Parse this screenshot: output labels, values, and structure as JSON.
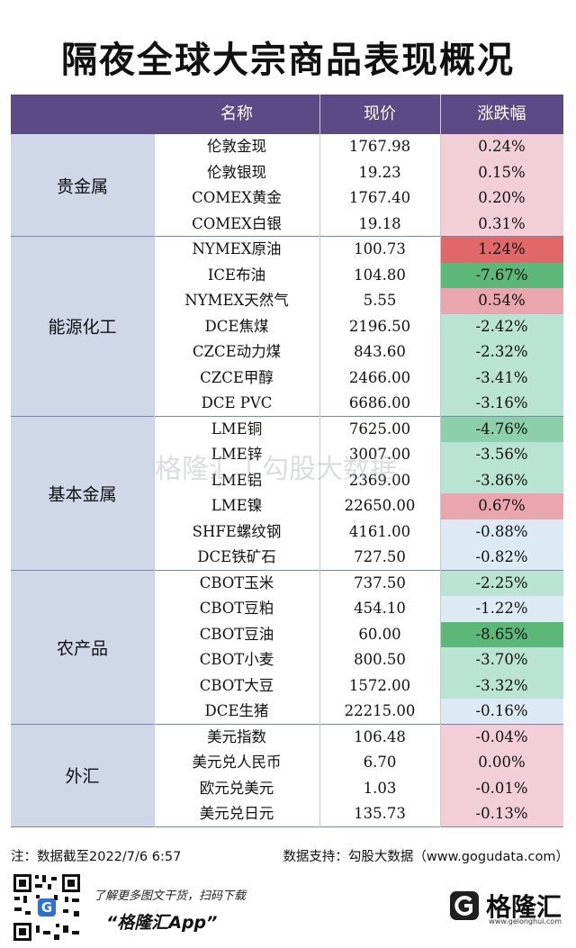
{
  "title": "隔夜全球大宗商品表现概况",
  "headers": {
    "name": "名称",
    "price": "现价",
    "change": "涨跌幅"
  },
  "colors": {
    "header_bg": "#5b4a86",
    "up_light": "#f2cfd6",
    "up_mid": "#e9a6ae",
    "up_strong": "#e06868",
    "down_light": "#dde9f3",
    "down_mid": "#b9e3d2",
    "down_strong": "#8bd0aa",
    "down_deep": "#5cb878",
    "flat": "#f2cfd6"
  },
  "groups": [
    {
      "label": "贵金属",
      "rows": [
        {
          "name": "伦敦金现",
          "price": "1767.98",
          "change": "0.24%",
          "tone": "up_light"
        },
        {
          "name": "伦敦银现",
          "price": "19.23",
          "change": "0.15%",
          "tone": "up_light"
        },
        {
          "name": "COMEX黄金",
          "price": "1767.40",
          "change": "0.20%",
          "tone": "up_light"
        },
        {
          "name": "COMEX白银",
          "price": "19.18",
          "change": "0.31%",
          "tone": "up_light"
        }
      ]
    },
    {
      "label": "能源化工",
      "rows": [
        {
          "name": "NYMEX原油",
          "price": "100.73",
          "change": "1.24%",
          "tone": "up_strong"
        },
        {
          "name": "ICE布油",
          "price": "104.80",
          "change": "-7.67%",
          "tone": "down_deep"
        },
        {
          "name": "NYMEX天然气",
          "price": "5.55",
          "change": "0.54%",
          "tone": "up_mid"
        },
        {
          "name": "DCE焦煤",
          "price": "2196.50",
          "change": "-2.42%",
          "tone": "down_mid"
        },
        {
          "name": "CZCE动力煤",
          "price": "843.60",
          "change": "-2.32%",
          "tone": "down_mid"
        },
        {
          "name": "CZCE甲醇",
          "price": "2466.00",
          "change": "-3.41%",
          "tone": "down_mid"
        },
        {
          "name": "DCE PVC",
          "price": "6686.00",
          "change": "-3.16%",
          "tone": "down_mid"
        }
      ]
    },
    {
      "label": "基本金属",
      "rows": [
        {
          "name": "LME铜",
          "price": "7625.00",
          "change": "-4.76%",
          "tone": "down_strong"
        },
        {
          "name": "LME锌",
          "price": "3007.00",
          "change": "-3.56%",
          "tone": "down_mid"
        },
        {
          "name": "LME铝",
          "price": "2369.00",
          "change": "-3.86%",
          "tone": "down_mid"
        },
        {
          "name": "LME镍",
          "price": "22650.00",
          "change": "0.67%",
          "tone": "up_mid"
        },
        {
          "name": "SHFE螺纹钢",
          "price": "4161.00",
          "change": "-0.88%",
          "tone": "down_light"
        },
        {
          "name": "DCE铁矿石",
          "price": "727.50",
          "change": "-0.82%",
          "tone": "down_light"
        }
      ]
    },
    {
      "label": "农产品",
      "rows": [
        {
          "name": "CBOT玉米",
          "price": "737.50",
          "change": "-2.25%",
          "tone": "down_mid"
        },
        {
          "name": "CBOT豆粕",
          "price": "454.10",
          "change": "-1.22%",
          "tone": "down_light"
        },
        {
          "name": "CBOT豆油",
          "price": "60.00",
          "change": "-8.65%",
          "tone": "down_deep"
        },
        {
          "name": "CBOT小麦",
          "price": "800.50",
          "change": "-3.70%",
          "tone": "down_mid"
        },
        {
          "name": "CBOT大豆",
          "price": "1572.00",
          "change": "-3.32%",
          "tone": "down_mid"
        },
        {
          "name": "DCE生猪",
          "price": "22215.00",
          "change": "-0.16%",
          "tone": "down_light"
        }
      ]
    },
    {
      "label": "外汇",
      "rows": [
        {
          "name": "美元指数",
          "price": "106.48",
          "change": "-0.04%",
          "tone": "up_light"
        },
        {
          "name": "美元兑人民币",
          "price": "6.70",
          "change": "0.00%",
          "tone": "flat"
        },
        {
          "name": "欧元兑美元",
          "price": "1.03",
          "change": "-0.01%",
          "tone": "up_light"
        },
        {
          "name": "美元兑日元",
          "price": "135.73",
          "change": "-0.13%",
          "tone": "up_light"
        }
      ]
    }
  ],
  "footer": {
    "note": "注：数据截至2022/7/6 6:57",
    "source": "数据支持：勾股大数据（www.gogudata.com）",
    "promo": "了解更多图文干货，扫码下载",
    "app": "“格隆汇App”",
    "logo": "格隆汇",
    "logo_url": "www.gelonghui.com"
  },
  "watermark": "格隆汇 | 勾股大数据"
}
